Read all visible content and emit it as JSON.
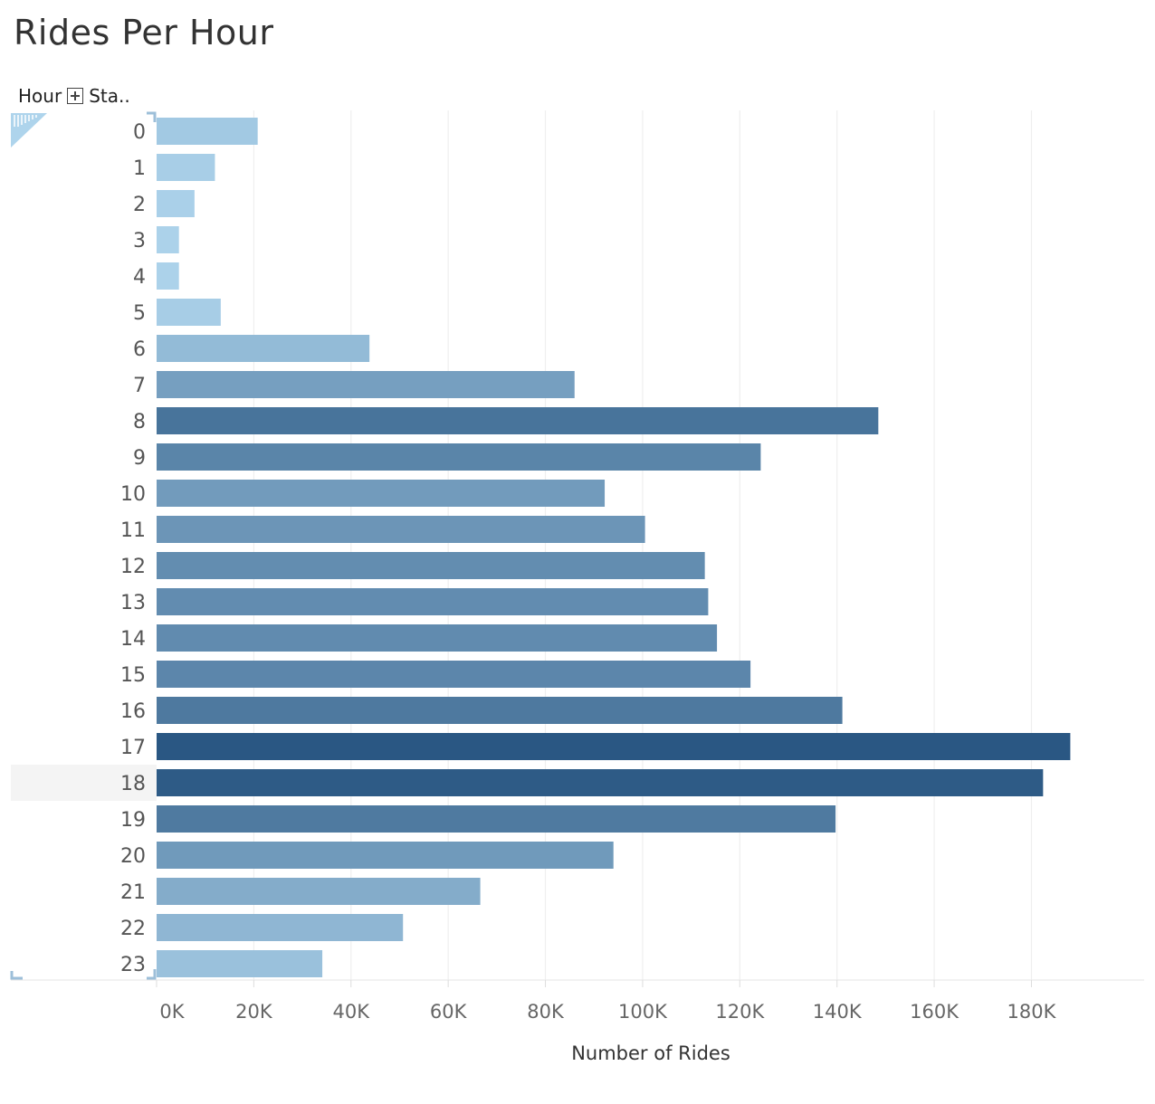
{
  "header": {
    "dim1": "Hour",
    "dim2": "Sta.."
  },
  "chart_data": {
    "type": "bar",
    "orientation": "horizontal",
    "title": "Rides Per Hour",
    "xlabel": "Number of Rides",
    "ylabel": "",
    "categories": [
      "0",
      "1",
      "2",
      "3",
      "4",
      "5",
      "6",
      "7",
      "8",
      "9",
      "10",
      "11",
      "12",
      "13",
      "14",
      "15",
      "16",
      "17",
      "18",
      "19",
      "20",
      "21",
      "22",
      "23"
    ],
    "values": [
      20800,
      12000,
      7800,
      4600,
      4600,
      13200,
      43800,
      86000,
      148500,
      124300,
      92200,
      100500,
      112800,
      113500,
      115300,
      122200,
      141100,
      188000,
      182400,
      139700,
      94000,
      66600,
      50700,
      34100
    ],
    "xlim": [
      0,
      195000
    ],
    "xticks": [
      0,
      20000,
      40000,
      60000,
      80000,
      100000,
      120000,
      140000,
      160000,
      180000
    ],
    "xtick_labels": [
      "0K",
      "20K",
      "40K",
      "60K",
      "80K",
      "100K",
      "120K",
      "140K",
      "160K",
      "180K"
    ],
    "grid": true,
    "color_scale": [
      "#aed4ec",
      "#2a5783"
    ],
    "highlighted_row": "18",
    "highlight_color": "#f4f4f4"
  }
}
